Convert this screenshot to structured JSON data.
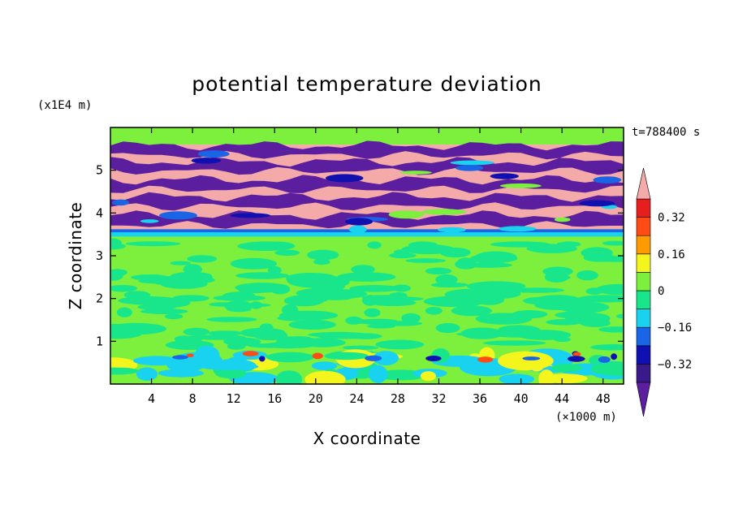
{
  "chart_data": {
    "type": "heatmap",
    "title": "potential temperature deviation",
    "xlabel": "X coordinate",
    "ylabel": "Z coordinate",
    "x_unit": "(×1000 m)",
    "y_unit": "(x1E4 m)",
    "time_label": "t=788400 s",
    "x_range": [
      0,
      50
    ],
    "y_range": [
      0,
      6
    ],
    "x_ticks": [
      4,
      8,
      12,
      16,
      20,
      24,
      28,
      32,
      36,
      40,
      44,
      48
    ],
    "y_ticks": [
      1,
      2,
      3,
      4,
      5
    ],
    "colorbar": {
      "levels": [
        -0.4,
        -0.32,
        -0.24,
        -0.16,
        -0.08,
        0,
        0.08,
        0.16,
        0.24,
        0.32,
        0.4
      ],
      "colors": [
        "#5a1e9e",
        "#3a1a8a",
        "#1010b0",
        "#1a64e6",
        "#19d2f0",
        "#19e68a",
        "#7cf03c",
        "#f5f51e",
        "#ff9b00",
        "#ff4b14",
        "#e61e1e",
        "#f5aaaa"
      ],
      "tick_labels": [
        "0.32",
        "0.16",
        "0",
        "−0.16",
        "−0.32"
      ],
      "tick_values": [
        0.32,
        0.16,
        0,
        -0.16,
        -0.32
      ]
    },
    "layers": [
      {
        "z_range": [
          5.6,
          6.0
        ],
        "category": "0.08 to 0.16"
      },
      {
        "z_range": [
          3.5,
          5.6
        ],
        "category": "alternating below -0.4 and above 0.4"
      },
      {
        "z_range": [
          3.45,
          3.6
        ],
        "category": "-0.16 to -0.08"
      },
      {
        "z_range": [
          0.8,
          3.45
        ],
        "category": "-0.08 to 0.08"
      },
      {
        "z_range": [
          0.0,
          0.8
        ],
        "category": "mixed -0.4 to 0.24"
      }
    ]
  }
}
